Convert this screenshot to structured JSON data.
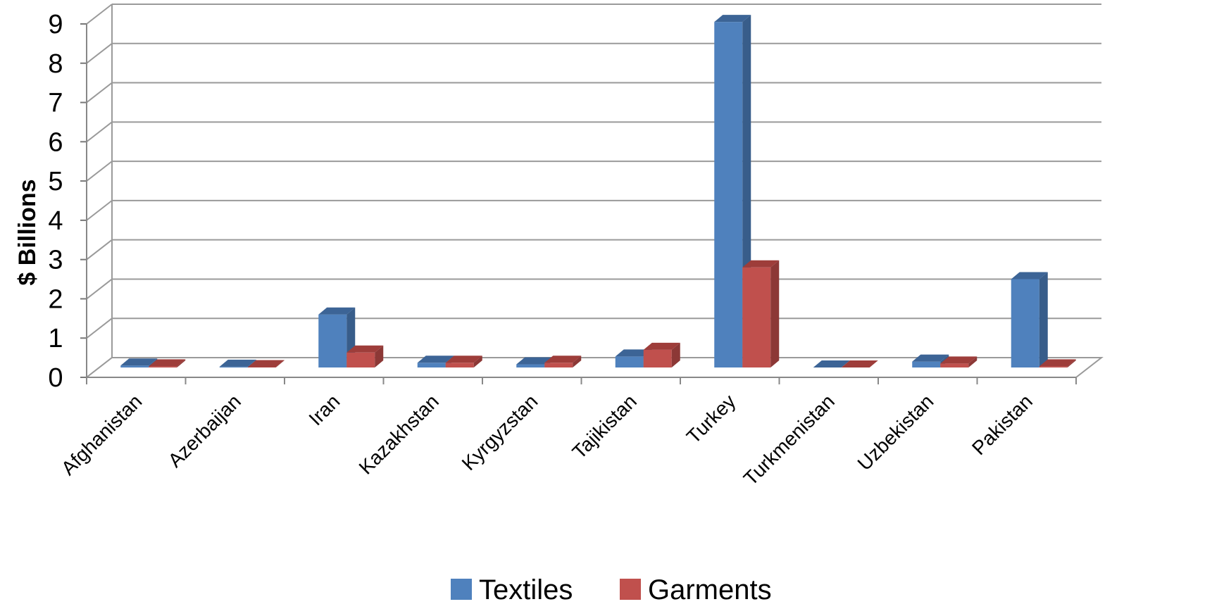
{
  "chart_data": {
    "type": "bar",
    "style": "3d-clustered-column",
    "title": "",
    "xlabel": "",
    "ylabel": "$ Billions",
    "ylim": [
      0,
      9
    ],
    "yticks": [
      0,
      1,
      2,
      3,
      4,
      5,
      6,
      7,
      8,
      9
    ],
    "grid": true,
    "legend_position": "bottom",
    "categories": [
      "Afghanistan",
      "Azerbaijan",
      "Iran",
      "Kazakhstan",
      "Kyrgyzstan",
      "Tajikistan",
      "Turkey",
      "Turkmenistan",
      "Uzbekistan",
      "Pakistan"
    ],
    "series": [
      {
        "name": "Textiles",
        "color": "#4F81BD",
        "side": "#385D8A",
        "top": "#3C6496",
        "values": [
          0.05,
          0.02,
          1.35,
          0.12,
          0.08,
          0.28,
          8.8,
          0.0,
          0.15,
          2.25
        ]
      },
      {
        "name": "Garments",
        "color": "#C0504D",
        "side": "#8C3836",
        "top": "#9E3D3A",
        "values": [
          0.03,
          0.01,
          0.38,
          0.12,
          0.12,
          0.45,
          2.55,
          0.0,
          0.1,
          0.03
        ]
      }
    ]
  }
}
